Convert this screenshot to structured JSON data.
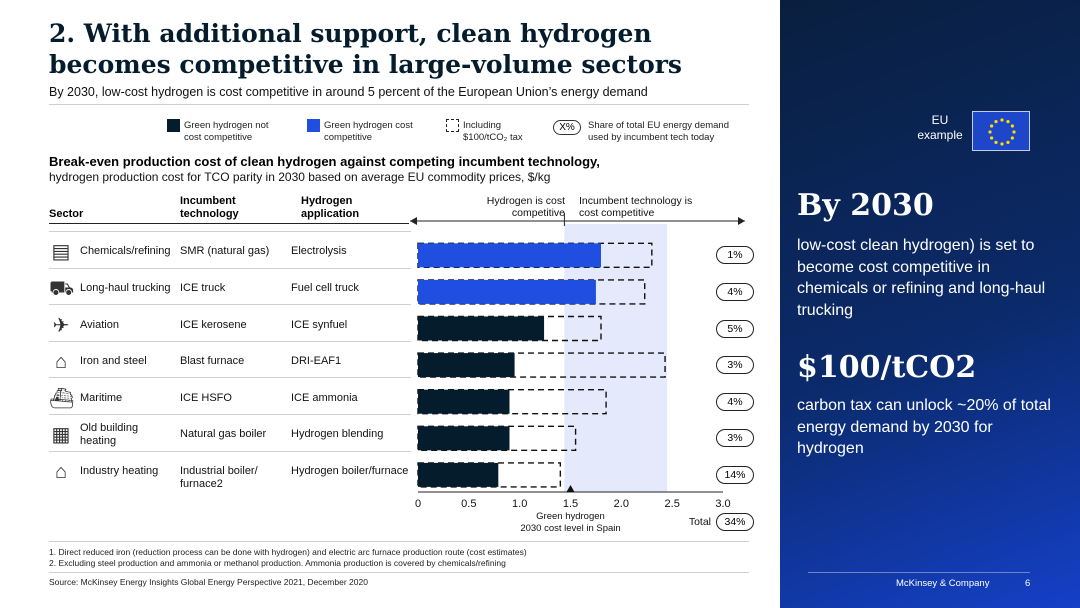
{
  "header": {
    "title": "2. With additional support, clean hydrogen becomes competitive in large-volume sectors",
    "subtitle": "By 2030, low-cost hydrogen is cost competitive in around 5 percent of the European Union’s energy demand"
  },
  "legend": {
    "not_competitive": "Green hydrogen not cost competitive",
    "competitive": "Green hydrogen cost competitive",
    "including_tax_1": "Including",
    "including_tax_2": "$100/tCO₂ tax",
    "share_symbol": "X%",
    "share_label": "Share of total EU energy demand used by incumbent tech today"
  },
  "chart_title": "Break-even production cost of clean hydrogen against competing incumbent technology,",
  "chart_subtitle": "hydrogen production cost for TCO parity in 2030 based on average EU commodity prices, $/kg",
  "columns": {
    "sector": "Sector",
    "incumbent": "Incumbent technology",
    "hydrogen": "Hydrogen application"
  },
  "annotations": {
    "h2_competitive": "Hydrogen is cost competitive",
    "incumbent_competitive": "Incumbent technology is cost competitive"
  },
  "colors": {
    "not_competitive": "#051c2c",
    "competitive": "#1f4ee0",
    "competitive_band": "#e4e9fb",
    "panel_top": "#0a1f3f",
    "panel_bottom": "#1540c8"
  },
  "chart_data": {
    "type": "bar",
    "orientation": "horizontal",
    "categories": [
      "Chemicals/refining",
      "Long-haul trucking",
      "Aviation",
      "Iron and steel",
      "Maritime",
      "Old building heating",
      "Industry heating"
    ],
    "incumbent": [
      "SMR (natural gas)",
      "ICE truck",
      "ICE kerosene",
      "Blast furnace",
      "ICE HSFO",
      "Natural gas boiler",
      "Industrial boiler/ furnace2"
    ],
    "hydrogen_application": [
      "Electrolysis",
      "Fuel cell truck",
      "ICE synfuel",
      "DRI-EAF1",
      "ICE ammonia",
      "Hydrogen blending",
      "Hydrogen boiler/furnace"
    ],
    "icons": [
      "factory-icon",
      "truck-icon",
      "airplane-icon",
      "steel-plant-icon",
      "ship-icon",
      "building-icon",
      "industry-icon"
    ],
    "series": [
      {
        "name": "Green hydrogen not cost competitive",
        "values": [
          null,
          null,
          1.24,
          0.95,
          0.9,
          0.9,
          0.79
        ]
      },
      {
        "name": "Green hydrogen cost competitive",
        "values": [
          1.8,
          1.75,
          null,
          null,
          null,
          null,
          null
        ]
      },
      {
        "name": "Including $100/tCO2 tax",
        "values": [
          2.3,
          2.23,
          1.8,
          2.43,
          1.85,
          1.55,
          1.4
        ]
      }
    ],
    "share_of_demand": [
      "1%",
      "4%",
      "5%",
      "3%",
      "4%",
      "3%",
      "14%"
    ],
    "total_label": "Total",
    "total_share": "34%",
    "xlim": [
      0,
      3.0
    ],
    "ticks": [
      "0",
      "0.5",
      "1.0",
      "1.5",
      "2.0",
      "2.5",
      "3.0"
    ],
    "tick_values": [
      0,
      0.5,
      1.0,
      1.5,
      2.0,
      2.5,
      3.0
    ],
    "competitive_band": [
      1.44,
      2.45
    ],
    "marker_value": 1.5,
    "marker_label_1": "Green hydrogen",
    "marker_label_2": "2030 cost level in Spain"
  },
  "footnotes": [
    "1.    Direct reduced iron (reduction process can be done with hydrogen) and electric arc furnace production route (cost estimates)",
    "2.    Excluding steel production and ammonia or methanol production. Ammonia production is covered by chemicals/refining"
  ],
  "source": "Source: McKinsey Energy Insights Global Energy Perspective 2021, December 2020",
  "panel": {
    "eu_label_1": "EU",
    "eu_label_2": "example",
    "big1": "By 2030",
    "text1": "low-cost clean hydrogen) is set to become cost competitive in chemicals or refining and long-haul trucking",
    "big2": "$100/tCO2",
    "text2": "carbon tax can unlock ~20% of total energy demand by 2030 for hydrogen",
    "brand": "McKinsey & Company",
    "page": "6"
  }
}
